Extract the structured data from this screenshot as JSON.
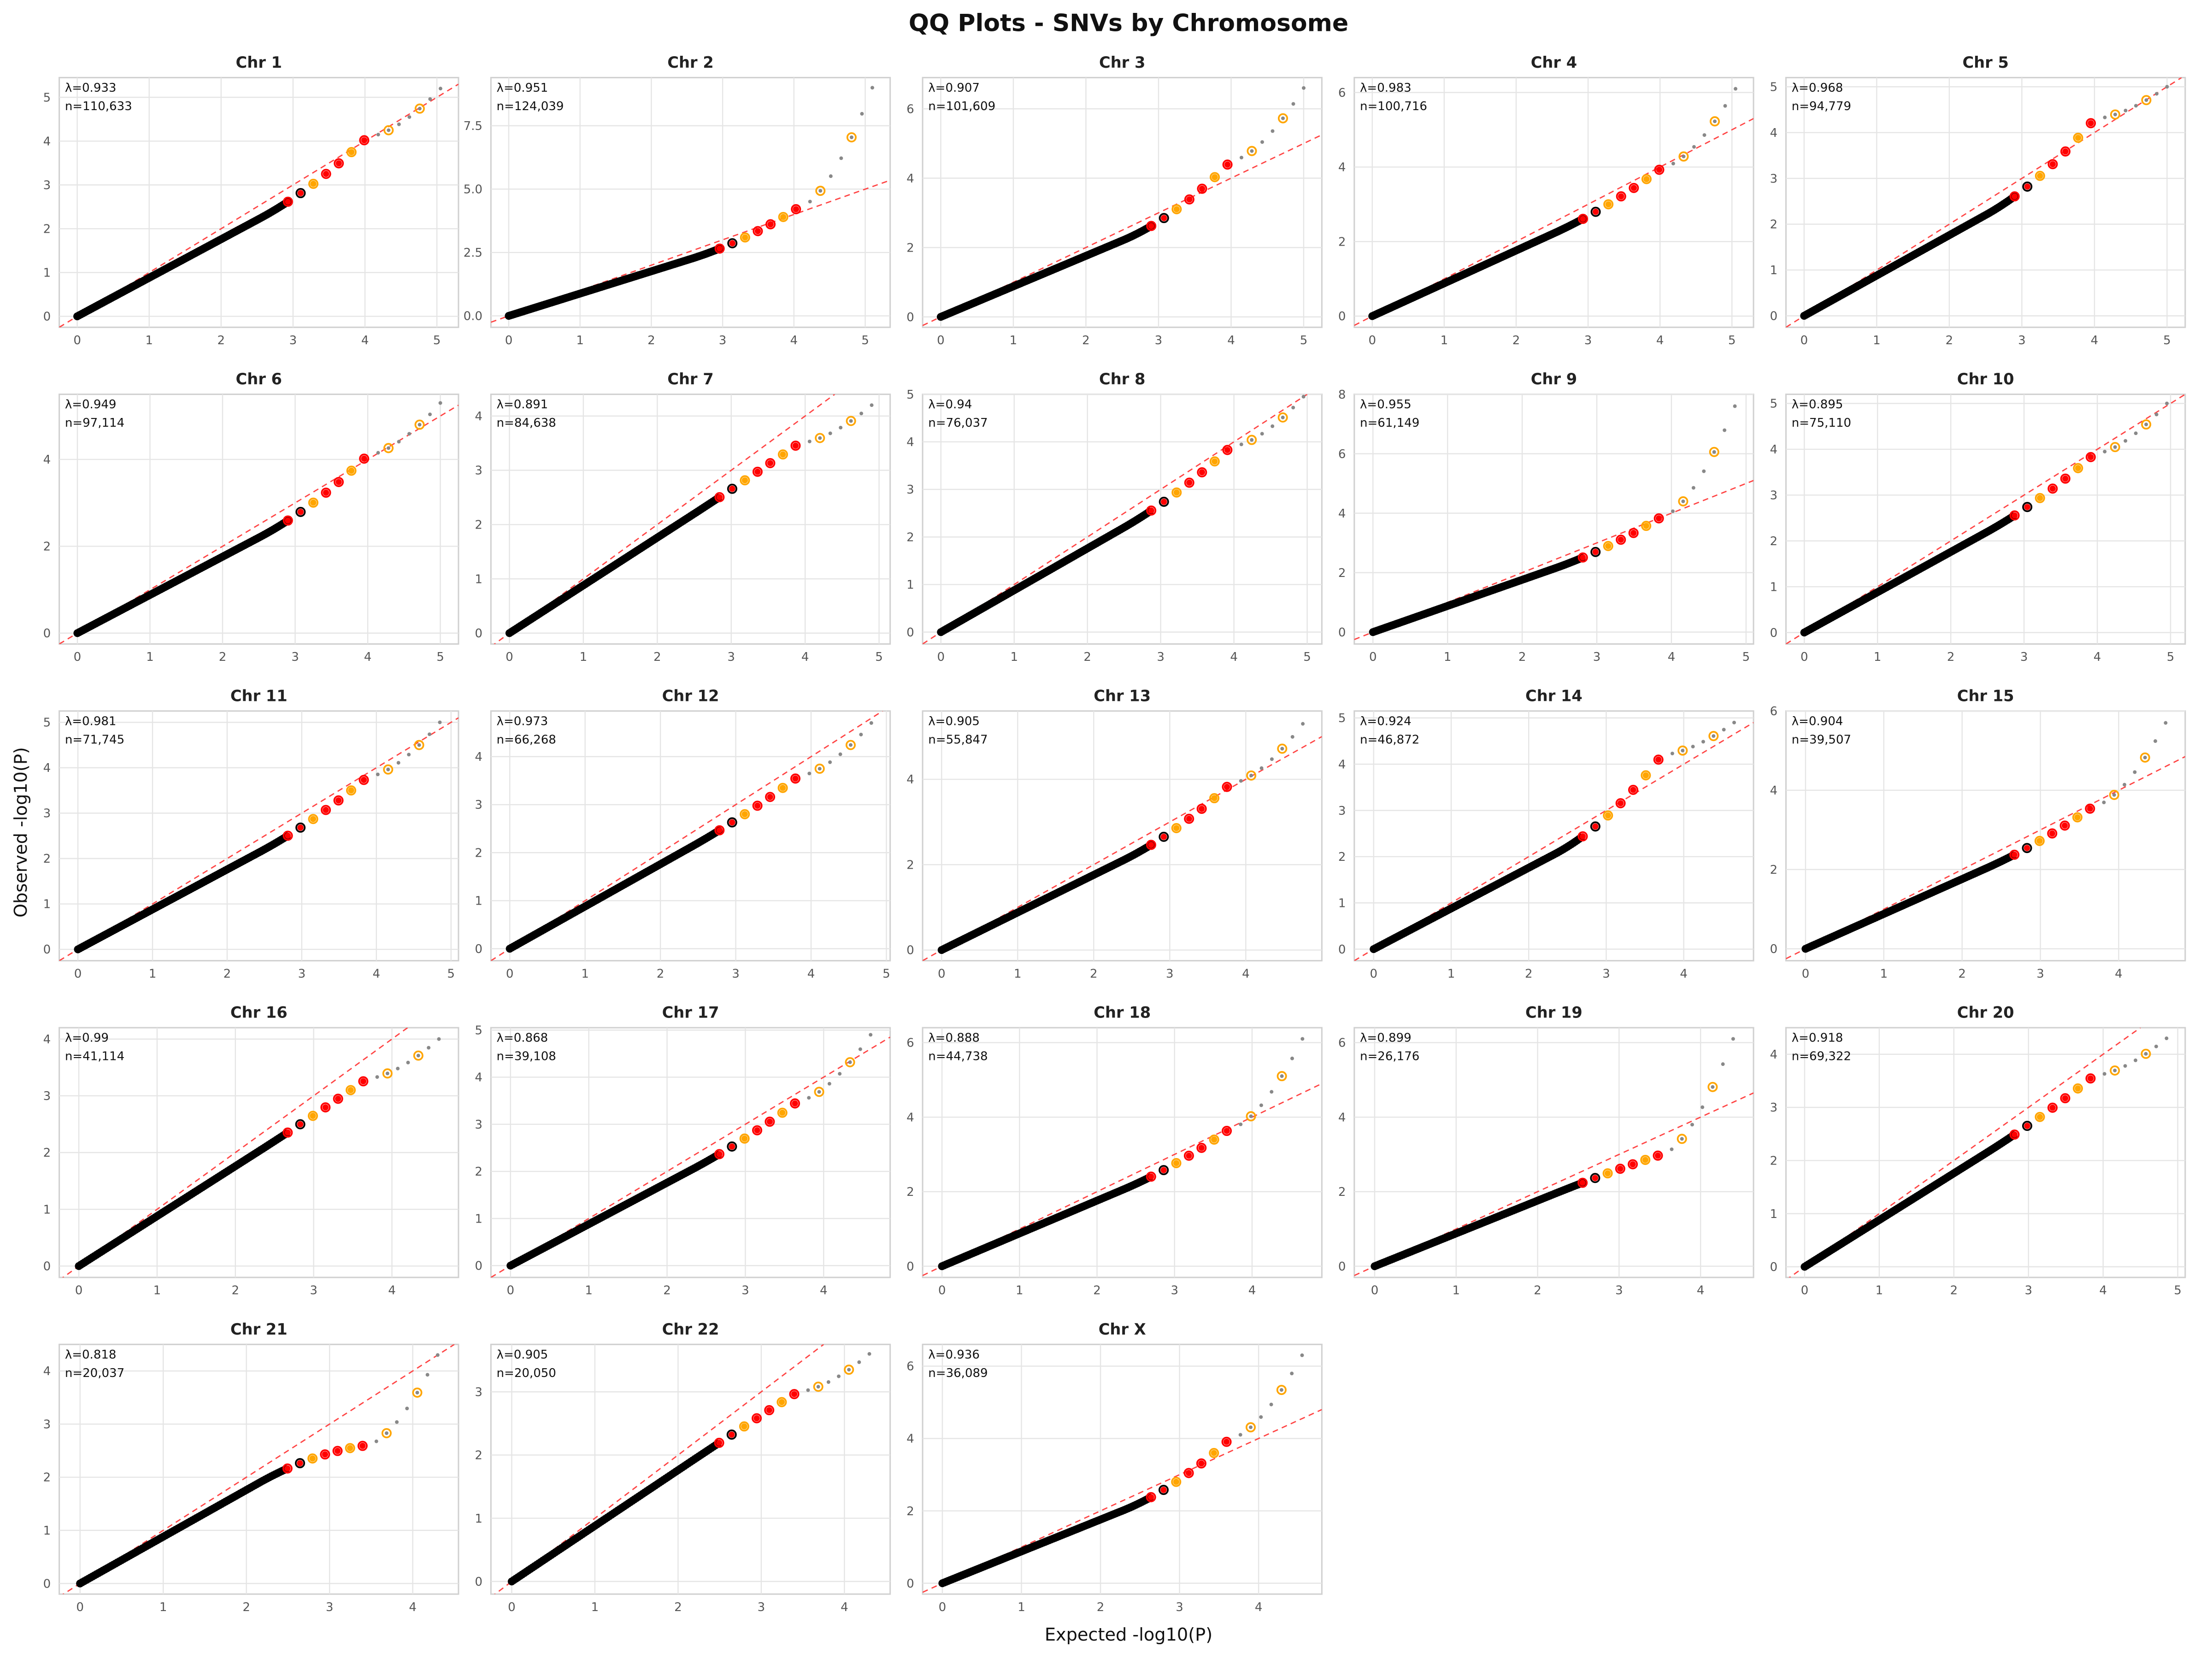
{
  "chart_data": {
    "title": "QQ Plots - SNVs by Chromosome",
    "xlabel": "Expected -log10(P)",
    "ylabel": "Observed -log10(P)",
    "type": "scatter",
    "colors": {
      "bulk": "#000000",
      "highlight_red": "#ff0000",
      "highlight_orange": "#ffa500",
      "tail": "#888888",
      "diagonal": "#ff4444",
      "grid": "#e5e5e5"
    },
    "panels": [
      {
        "title": "Chr 1",
        "lambda_label": "λ=0.933",
        "n_label": "n=110,633",
        "xmax": 5.05,
        "ytop": 5.2,
        "ye": 4.1,
        "xticks": [
          0,
          1,
          2,
          3,
          4,
          5
        ],
        "yticks": [
          0,
          1,
          2,
          3,
          4,
          5
        ],
        "ylim": [
          -0.25,
          5.45
        ]
      },
      {
        "title": "Chr 2",
        "lambda_label": "λ=0.951",
        "n_label": "n=124,039",
        "xmax": 5.1,
        "ytop": 9.0,
        "ye": 4.3,
        "xticks": [
          0,
          1,
          2,
          3,
          4,
          5
        ],
        "yticks": [
          0,
          2.5,
          5,
          7.5
        ],
        "ytick_labels": [
          "0.0",
          "2.5",
          "5.0",
          "7.5"
        ],
        "ylim": [
          -0.45,
          9.4
        ]
      },
      {
        "title": "Chr 3",
        "lambda_label": "λ=0.907",
        "n_label": "n=101,609",
        "xmax": 5.0,
        "ytop": 6.6,
        "ye": 4.5,
        "xticks": [
          0,
          1,
          2,
          3,
          4,
          5
        ],
        "yticks": [
          0,
          2,
          4,
          6
        ],
        "ylim": [
          -0.3,
          6.9
        ]
      },
      {
        "title": "Chr 4",
        "lambda_label": "λ=0.983",
        "n_label": "n=100,716",
        "xmax": 5.05,
        "ytop": 6.1,
        "ye": 4.0,
        "xticks": [
          0,
          1,
          2,
          3,
          4,
          5
        ],
        "yticks": [
          0,
          2,
          4,
          6
        ],
        "ylim": [
          -0.3,
          6.4
        ]
      },
      {
        "title": "Chr 5",
        "lambda_label": "λ=0.968",
        "n_label": "n=94,779",
        "xmax": 5.0,
        "ytop": 5.0,
        "ye": 4.3,
        "xticks": [
          0,
          1,
          2,
          3,
          4,
          5
        ],
        "yticks": [
          0,
          1,
          2,
          3,
          4,
          5
        ],
        "ylim": [
          -0.25,
          5.2
        ]
      },
      {
        "title": "Chr 6",
        "lambda_label": "λ=0.949",
        "n_label": "n=97,114",
        "xmax": 5.0,
        "ytop": 5.3,
        "ye": 4.1,
        "xticks": [
          0,
          1,
          2,
          3,
          4,
          5
        ],
        "yticks": [
          0,
          2,
          4
        ],
        "ylim": [
          -0.25,
          5.5
        ]
      },
      {
        "title": "Chr 7",
        "lambda_label": "λ=0.891",
        "n_label": "n=84,638",
        "xmax": 4.9,
        "ytop": 4.2,
        "ye": 3.5,
        "xticks": [
          0,
          1,
          2,
          3,
          4,
          5
        ],
        "yticks": [
          0,
          1,
          2,
          3,
          4
        ],
        "ylim": [
          -0.2,
          4.4
        ]
      },
      {
        "title": "Chr 8",
        "lambda_label": "λ=0.94",
        "n_label": "n=76,037",
        "xmax": 4.95,
        "ytop": 4.95,
        "ye": 3.9,
        "xticks": [
          0,
          1,
          2,
          3,
          4,
          5
        ],
        "yticks": [
          0,
          1,
          2,
          3,
          4,
          5
        ],
        "ylim": [
          -0.25,
          5.0
        ]
      },
      {
        "title": "Chr 9",
        "lambda_label": "λ=0.955",
        "n_label": "n=61,149",
        "xmax": 4.85,
        "ytop": 7.6,
        "ye": 3.9,
        "xticks": [
          0,
          1,
          2,
          3,
          4,
          5
        ],
        "yticks": [
          0,
          2,
          4,
          6,
          8
        ],
        "ylim": [
          -0.4,
          8.0
        ]
      },
      {
        "title": "Chr 10",
        "lambda_label": "λ=0.895",
        "n_label": "n=75,110",
        "xmax": 4.95,
        "ytop": 5.0,
        "ye": 3.9,
        "xticks": [
          0,
          1,
          2,
          3,
          4,
          5
        ],
        "yticks": [
          0,
          1,
          2,
          3,
          4,
          5
        ],
        "ylim": [
          -0.25,
          5.2
        ]
      },
      {
        "title": "Chr 11",
        "lambda_label": "λ=0.981",
        "n_label": "n=71,745",
        "xmax": 4.85,
        "ytop": 5.0,
        "ye": 3.8,
        "xticks": [
          0,
          1,
          2,
          3,
          4,
          5
        ],
        "yticks": [
          0,
          1,
          2,
          3,
          4,
          5
        ],
        "ylim": [
          -0.25,
          5.25
        ]
      },
      {
        "title": "Chr 12",
        "lambda_label": "λ=0.973",
        "n_label": "n=66,268",
        "xmax": 4.8,
        "ytop": 4.7,
        "ye": 3.6,
        "xticks": [
          0,
          1,
          2,
          3,
          4,
          5
        ],
        "yticks": [
          0,
          1,
          2,
          3,
          4
        ],
        "ylim": [
          -0.25,
          4.95
        ]
      },
      {
        "title": "Chr 13",
        "lambda_label": "λ=0.905",
        "n_label": "n=55,847",
        "xmax": 4.75,
        "ytop": 5.3,
        "ye": 3.9,
        "xticks": [
          0,
          1,
          2,
          3,
          4
        ],
        "yticks": [
          0,
          2,
          4
        ],
        "ylim": [
          -0.25,
          5.6
        ]
      },
      {
        "title": "Chr 14",
        "lambda_label": "λ=0.924",
        "n_label": "n=46,872",
        "xmax": 4.65,
        "ytop": 4.9,
        "ye": 4.2,
        "xticks": [
          0,
          1,
          2,
          3,
          4
        ],
        "yticks": [
          0,
          1,
          2,
          3,
          4,
          5
        ],
        "ylim": [
          -0.25,
          5.15
        ]
      },
      {
        "title": "Chr 15",
        "lambda_label": "λ=0.904",
        "n_label": "n=39,507",
        "xmax": 4.6,
        "ytop": 5.7,
        "ye": 3.6,
        "xticks": [
          0,
          1,
          2,
          3,
          4
        ],
        "yticks": [
          0,
          2,
          4,
          6
        ],
        "ylim": [
          -0.3,
          6.0
        ]
      },
      {
        "title": "Chr 16",
        "lambda_label": "λ=0.99",
        "n_label": "n=41,114",
        "xmax": 4.6,
        "ytop": 4.0,
        "ye": 3.3,
        "xticks": [
          0,
          1,
          2,
          3,
          4
        ],
        "yticks": [
          0,
          1,
          2,
          3,
          4
        ],
        "ylim": [
          -0.2,
          4.2
        ]
      },
      {
        "title": "Chr 17",
        "lambda_label": "λ=0.868",
        "n_label": "n=39,108",
        "xmax": 4.6,
        "ytop": 4.9,
        "ye": 3.5,
        "xticks": [
          0,
          1,
          2,
          3,
          4
        ],
        "yticks": [
          0,
          1,
          2,
          3,
          4,
          5
        ],
        "ylim": [
          -0.25,
          5.05
        ]
      },
      {
        "title": "Chr 18",
        "lambda_label": "λ=0.888",
        "n_label": "n=44,738",
        "xmax": 4.65,
        "ytop": 6.1,
        "ye": 3.7,
        "xticks": [
          0,
          1,
          2,
          3,
          4
        ],
        "yticks": [
          0,
          2,
          4,
          6
        ],
        "ylim": [
          -0.3,
          6.4
        ]
      },
      {
        "title": "Chr 19",
        "lambda_label": "λ=0.899",
        "n_label": "n=26,176",
        "xmax": 4.4,
        "ytop": 6.1,
        "ye": 3.0,
        "xticks": [
          0,
          1,
          2,
          3,
          4
        ],
        "yticks": [
          0,
          2,
          4,
          6
        ],
        "ylim": [
          -0.3,
          6.4
        ]
      },
      {
        "title": "Chr 20",
        "lambda_label": "λ=0.918",
        "n_label": "n=69,322",
        "xmax": 4.85,
        "ytop": 4.3,
        "ye": 3.6,
        "xticks": [
          0,
          1,
          2,
          3,
          4,
          5
        ],
        "yticks": [
          0,
          1,
          2,
          3,
          4
        ],
        "ylim": [
          -0.2,
          4.5
        ]
      },
      {
        "title": "Chr 21",
        "lambda_label": "λ=0.818",
        "n_label": "n=20,037",
        "xmax": 4.3,
        "ytop": 4.3,
        "ye": 2.6,
        "xticks": [
          0,
          1,
          2,
          3,
          4
        ],
        "yticks": [
          0,
          1,
          2,
          3,
          4
        ],
        "ylim": [
          -0.2,
          4.5
        ]
      },
      {
        "title": "Chr 22",
        "lambda_label": "λ=0.905",
        "n_label": "n=20,050",
        "xmax": 4.3,
        "ytop": 3.6,
        "ye": 3.0,
        "xticks": [
          0,
          1,
          2,
          3,
          4
        ],
        "yticks": [
          0,
          1,
          2,
          3
        ],
        "ylim": [
          -0.2,
          3.75
        ]
      },
      {
        "title": "Chr X",
        "lambda_label": "λ=0.936",
        "n_label": "n=36,089",
        "xmax": 4.55,
        "ytop": 6.3,
        "ye": 4.0,
        "xticks": [
          0,
          1,
          2,
          3,
          4
        ],
        "yticks": [
          0,
          2,
          4,
          6
        ],
        "ylim": [
          -0.3,
          6.6
        ]
      }
    ]
  }
}
